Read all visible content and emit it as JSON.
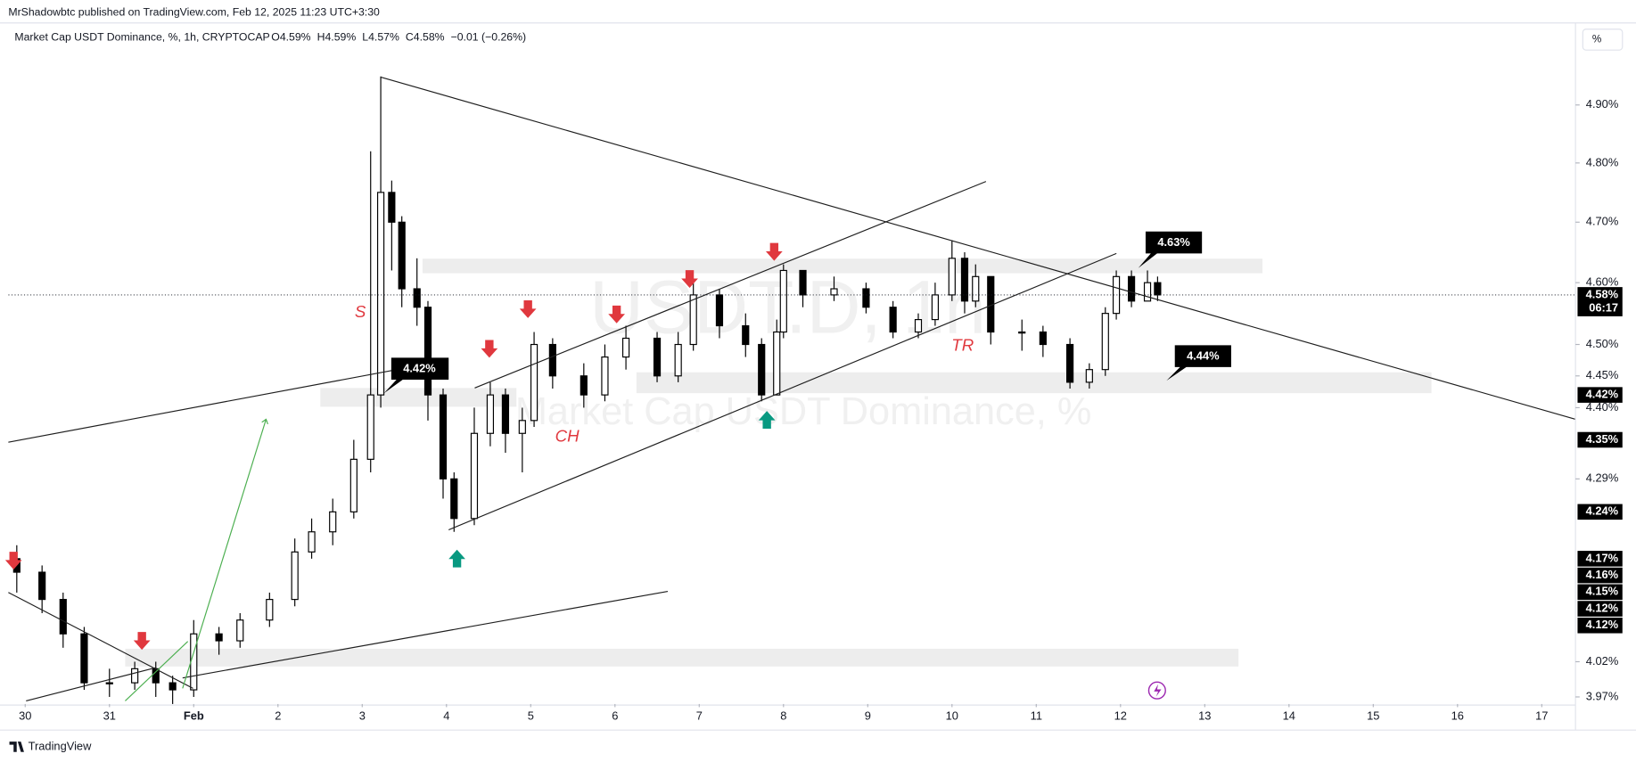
{
  "chart_data": {
    "type": "candlestick",
    "published": "MrShadowbtc published on TradingView.com, Feb 12, 2025 11:23 UTC+3:30",
    "title": "Market Cap USDT Dominance, %, 1h, CRYPTOCAP",
    "legend_stats": [
      "O4.59%",
      "H4.59%",
      "L4.57%",
      "C4.58%",
      "−0.01 (−0.26%)"
    ],
    "watermark": "USDT.D, 1h",
    "watermark_subtitle": "Market Cap USDT Dominance, %",
    "scale_button": "%",
    "brand": "TradingView",
    "annotations": [
      "S",
      "CH",
      "TR"
    ],
    "callouts": [
      "4.42%",
      "4.63%",
      "4.44%"
    ],
    "log_scale": true,
    "grid": false,
    "up_color": "#ffffff",
    "down_color": "#000000",
    "border_color": "#000000",
    "xlim": [
      -0.2,
      18.4
    ],
    "ylim": [
      3.96,
      5.045
    ],
    "xticks": [
      {
        "value": 0,
        "label": "30"
      },
      {
        "value": 1,
        "label": "31"
      },
      {
        "value": 2,
        "label": "Feb"
      },
      {
        "value": 3,
        "label": "2"
      },
      {
        "value": 4,
        "label": "3"
      },
      {
        "value": 5,
        "label": "4"
      },
      {
        "value": 6,
        "label": "5"
      },
      {
        "value": 7,
        "label": "6"
      },
      {
        "value": 8,
        "label": "7"
      },
      {
        "value": 9,
        "label": "8"
      },
      {
        "value": 10,
        "label": "9"
      },
      {
        "value": 11,
        "label": "10"
      },
      {
        "value": 12,
        "label": "11"
      },
      {
        "value": 13,
        "label": "12"
      },
      {
        "value": 14,
        "label": "13"
      },
      {
        "value": 15,
        "label": "14"
      },
      {
        "value": 16,
        "label": "15"
      },
      {
        "value": 17,
        "label": "16"
      },
      {
        "value": 18,
        "label": "17"
      }
    ],
    "yticks": [
      {
        "value": 4.9,
        "label": "4.90%"
      },
      {
        "value": 4.8,
        "label": "4.80%"
      },
      {
        "value": 4.7,
        "label": "4.70%"
      },
      {
        "value": 4.6,
        "label": "4.60%"
      },
      {
        "value": 4.5,
        "label": "4.50%"
      },
      {
        "value": 4.45,
        "label": "4.45%"
      },
      {
        "value": 4.4,
        "label": "4.40%"
      },
      {
        "value": 4.29,
        "label": "4.29%"
      },
      {
        "value": 4.02,
        "label": "4.02%"
      },
      {
        "value": 3.97,
        "label": "3.97%"
      }
    ],
    "price_markers": [
      {
        "value": 4.58,
        "label": "4.58%"
      },
      {
        "value": 4.42,
        "label": "4.42%"
      },
      {
        "value": 4.35,
        "label": "4.35%"
      },
      {
        "value": 4.24,
        "label": "4.24%"
      },
      {
        "value": 4.17,
        "label": "4.17%"
      },
      {
        "value": 4.16,
        "label": "4.16%"
      },
      {
        "value": 4.15,
        "label": "4.15%"
      },
      {
        "value": 4.12,
        "label": "4.12%"
      },
      {
        "value": 4.12,
        "label": "4.12%"
      }
    ],
    "countdown": "06:17",
    "x": [
      -0.1,
      0.2,
      0.45,
      0.7,
      1.0,
      1.3,
      1.55,
      1.75,
      2.0,
      2.3,
      2.55,
      2.9,
      3.2,
      3.4,
      3.65,
      3.9,
      4.1,
      4.22,
      4.35,
      4.47,
      4.65,
      4.78,
      4.96,
      5.09,
      5.33,
      5.52,
      5.7,
      5.9,
      6.04,
      6.26,
      6.63,
      6.88,
      7.13,
      7.5,
      7.75,
      7.93,
      8.24,
      8.55,
      8.74,
      8.92,
      9.0,
      9.23,
      9.6,
      9.98,
      10.3,
      10.6,
      10.8,
      11.0,
      11.15,
      11.28,
      11.46,
      11.83,
      12.08,
      12.4,
      12.63,
      12.82,
      12.95,
      13.13,
      13.32,
      13.44
    ],
    "open": [
      4.17,
      4.15,
      4.11,
      4.06,
      3.99,
      3.99,
      4.01,
      3.99,
      3.98,
      4.06,
      4.05,
      4.08,
      4.11,
      4.18,
      4.21,
      4.24,
      4.32,
      4.42,
      4.75,
      4.7,
      4.59,
      4.56,
      4.42,
      4.29,
      4.23,
      4.36,
      4.42,
      4.36,
      4.38,
      4.5,
      4.45,
      4.42,
      4.48,
      4.51,
      4.45,
      4.5,
      4.58,
      4.53,
      4.5,
      4.42,
      4.52,
      4.62,
      4.58,
      4.59,
      4.56,
      4.52,
      4.54,
      4.58,
      4.64,
      4.57,
      4.61,
      4.52,
      4.52,
      4.5,
      4.44,
      4.46,
      4.55,
      4.61,
      4.57,
      4.6
    ],
    "high": [
      4.19,
      4.16,
      4.12,
      4.07,
      4.01,
      4.02,
      4.02,
      4.0,
      4.08,
      4.07,
      4.09,
      4.12,
      4.2,
      4.23,
      4.26,
      4.35,
      4.82,
      4.95,
      4.77,
      4.71,
      4.64,
      4.57,
      4.43,
      4.3,
      4.4,
      4.44,
      4.43,
      4.4,
      4.52,
      4.51,
      4.47,
      4.5,
      4.53,
      4.52,
      4.52,
      4.6,
      4.59,
      4.55,
      4.51,
      4.54,
      4.63,
      4.62,
      4.61,
      4.6,
      4.57,
      4.55,
      4.6,
      4.67,
      4.65,
      4.63,
      4.61,
      4.54,
      4.53,
      4.51,
      4.47,
      4.56,
      4.62,
      4.62,
      4.62,
      4.61
    ],
    "low": [
      4.12,
      4.09,
      4.04,
      3.98,
      3.97,
      3.98,
      3.97,
      3.96,
      3.97,
      4.03,
      4.04,
      4.07,
      4.1,
      4.17,
      4.19,
      4.23,
      4.3,
      4.4,
      4.62,
      4.56,
      4.53,
      4.38,
      4.26,
      4.21,
      4.22,
      4.34,
      4.33,
      4.3,
      4.37,
      4.43,
      4.4,
      4.41,
      4.46,
      4.44,
      4.44,
      4.49,
      4.51,
      4.48,
      4.41,
      4.42,
      4.51,
      4.56,
      4.57,
      4.55,
      4.51,
      4.51,
      4.53,
      4.57,
      4.55,
      4.56,
      4.5,
      4.49,
      4.48,
      4.43,
      4.43,
      4.45,
      4.54,
      4.56,
      4.57,
      4.57
    ],
    "close": [
      4.15,
      4.11,
      4.06,
      3.99,
      3.99,
      4.01,
      3.99,
      3.98,
      4.06,
      4.05,
      4.08,
      4.11,
      4.18,
      4.21,
      4.24,
      4.32,
      4.42,
      4.75,
      4.7,
      4.59,
      4.56,
      4.42,
      4.29,
      4.23,
      4.36,
      4.42,
      4.36,
      4.38,
      4.5,
      4.45,
      4.42,
      4.48,
      4.51,
      4.45,
      4.5,
      4.58,
      4.53,
      4.5,
      4.42,
      4.52,
      4.62,
      4.58,
      4.59,
      4.56,
      4.52,
      4.54,
      4.58,
      4.64,
      4.57,
      4.61,
      4.52,
      4.52,
      4.5,
      4.44,
      4.46,
      4.55,
      4.61,
      4.57,
      4.6,
      4.58
    ]
  }
}
